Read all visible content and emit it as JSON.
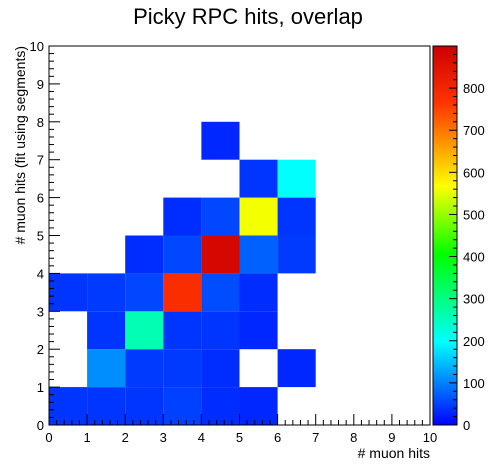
{
  "chart_data": {
    "type": "heatmap",
    "title": "Picky RPC hits, overlap",
    "xlabel": "# muon hits",
    "ylabel": "# muon hits (fit using segments)",
    "xlim": [
      0,
      10
    ],
    "ylim": [
      0,
      10
    ],
    "x_ticks": [
      "0",
      "1",
      "2",
      "3",
      "4",
      "5",
      "6",
      "7",
      "8",
      "9",
      "10"
    ],
    "y_ticks": [
      "0",
      "1",
      "2",
      "3",
      "4",
      "5",
      "6",
      "7",
      "8",
      "9",
      "10"
    ],
    "zlim": [
      0,
      900
    ],
    "z_ticks": [
      "0",
      "100",
      "200",
      "300",
      "400",
      "500",
      "600",
      "700",
      "800"
    ],
    "grid": false,
    "cells": [
      {
        "x": 0,
        "y": 0,
        "z": 40
      },
      {
        "x": 1,
        "y": 0,
        "z": 40
      },
      {
        "x": 2,
        "y": 0,
        "z": 40
      },
      {
        "x": 3,
        "y": 0,
        "z": 50
      },
      {
        "x": 4,
        "y": 0,
        "z": 35
      },
      {
        "x": 5,
        "y": 0,
        "z": 30
      },
      {
        "x": 1,
        "y": 1,
        "z": 110
      },
      {
        "x": 2,
        "y": 1,
        "z": 45
      },
      {
        "x": 3,
        "y": 1,
        "z": 45
      },
      {
        "x": 4,
        "y": 1,
        "z": 35
      },
      {
        "x": 6,
        "y": 1,
        "z": 30
      },
      {
        "x": 1,
        "y": 2,
        "z": 40
      },
      {
        "x": 2,
        "y": 2,
        "z": 260
      },
      {
        "x": 3,
        "y": 2,
        "z": 40
      },
      {
        "x": 4,
        "y": 2,
        "z": 40
      },
      {
        "x": 5,
        "y": 2,
        "z": 30
      },
      {
        "x": 0,
        "y": 3,
        "z": 40
      },
      {
        "x": 1,
        "y": 3,
        "z": 45
      },
      {
        "x": 2,
        "y": 3,
        "z": 55
      },
      {
        "x": 3,
        "y": 3,
        "z": 780
      },
      {
        "x": 4,
        "y": 3,
        "z": 60
      },
      {
        "x": 5,
        "y": 3,
        "z": 35
      },
      {
        "x": 2,
        "y": 4,
        "z": 35
      },
      {
        "x": 3,
        "y": 4,
        "z": 55
      },
      {
        "x": 4,
        "y": 4,
        "z": 880
      },
      {
        "x": 5,
        "y": 4,
        "z": 75
      },
      {
        "x": 6,
        "y": 4,
        "z": 45
      },
      {
        "x": 3,
        "y": 5,
        "z": 35
      },
      {
        "x": 4,
        "y": 5,
        "z": 55
      },
      {
        "x": 5,
        "y": 5,
        "z": 560
      },
      {
        "x": 6,
        "y": 5,
        "z": 40
      },
      {
        "x": 5,
        "y": 6,
        "z": 40
      },
      {
        "x": 6,
        "y": 6,
        "z": 200
      },
      {
        "x": 4,
        "y": 7,
        "z": 30
      }
    ]
  }
}
